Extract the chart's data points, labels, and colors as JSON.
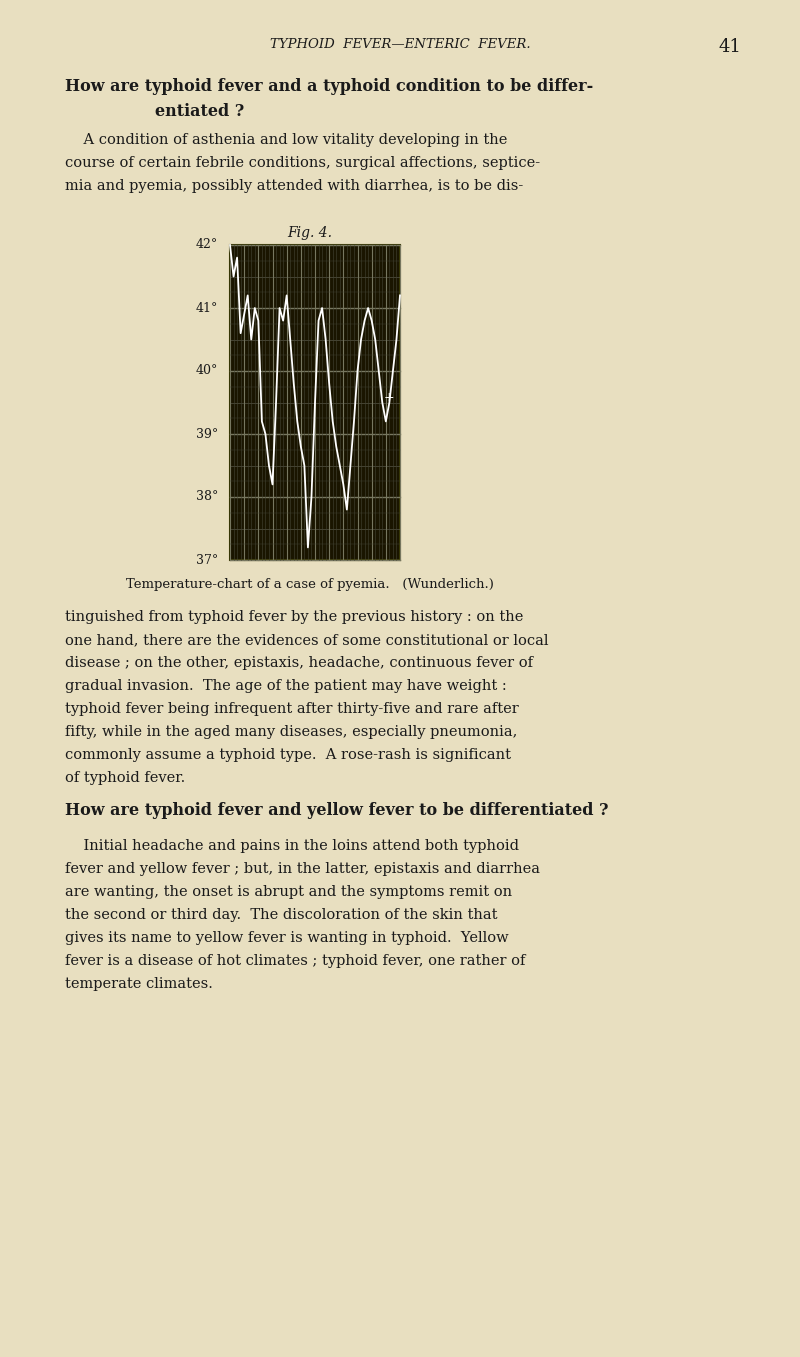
{
  "bg_color": "#e8dfc0",
  "page_width": 8.0,
  "page_height": 13.57,
  "header_text": "TYPHOID  FEVER—ENTERIC  FEVER.",
  "page_number": "41",
  "heading1": "How are typhoid fever and a typhoid condition to be differ-\n        entiated ?",
  "para1": "    A condition of asthenia and low vitality developing in the\ncourse of certain febrile conditions, surgical affections, septice-\nmia and pyemia, possibly attended with diarrhea, is to be dis-",
  "fig_title": "Fig. 4.",
  "fig_caption": "Temperature-chart of a case of pyemia.   (Wunderlich.)",
  "ytick_labels": [
    "42°",
    "41°",
    "40°",
    "39°",
    "38°",
    "37°"
  ],
  "ytick_values": [
    42,
    41,
    40,
    39,
    38,
    37
  ],
  "chart_bg": "#1a1500",
  "grid_color": "#888870",
  "line_color": "#ffffff",
  "temp_data": [
    42.0,
    41.5,
    41.8,
    40.6,
    40.9,
    41.2,
    40.5,
    41.0,
    40.8,
    39.2,
    39.0,
    38.5,
    38.2,
    39.5,
    41.0,
    40.8,
    41.2,
    40.5,
    39.8,
    39.2,
    38.8,
    38.5,
    37.2,
    38.0,
    39.5,
    40.8,
    41.0,
    40.5,
    39.8,
    39.2,
    38.8,
    38.5,
    38.2,
    37.8,
    38.5,
    39.2,
    40.0,
    40.5,
    40.8,
    41.0,
    40.8,
    40.5,
    40.0,
    39.5,
    39.2,
    39.5,
    40.0,
    40.5,
    41.2
  ],
  "para2": "tinguished from typhoid fever by the previous history : on the\none hand, there are the evidences of some constitutional or local\ndisease ; on the other, epistaxis, headache, continuous fever of\ngradual invasion.  The age of the patient may have weight :\ntyphoid fever being infrequent after thirty-five and rare after\nfifty, while in the aged many diseases, especially pneumonia,\ncommonly assume a typhoid type.  A rose-rash is significant\nof typhoid fever.",
  "heading2": "How are typhoid fever and yellow fever to be differentiated ?",
  "para3": "    Initial headache and pains in the loins attend both typhoid\nfever and yellow fever ; but, in the latter, epistaxis and diarrhea\nare wanting, the onset is abrupt and the symptoms remit on\nthe second or third day.  The discoloration of the skin that\ngives its name to yellow fever is wanting in typhoid.  Yellow\nfever is a disease of hot climates ; typhoid fever, one rather of\ntemperate climates."
}
